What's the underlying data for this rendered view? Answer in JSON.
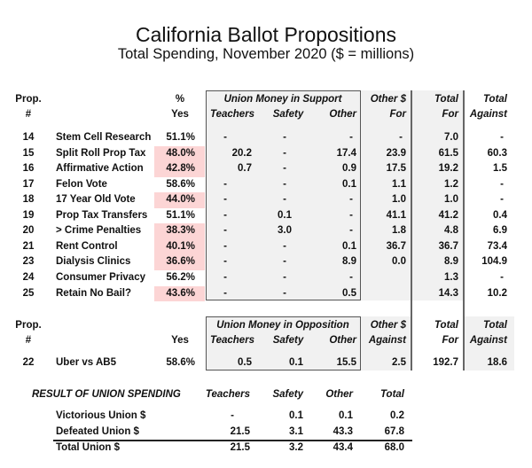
{
  "title": "California Ballot Propositions",
  "subtitle": "Total Spending, November 2020 ($ = millions)",
  "colors": {
    "failed_highlight": "#fcd5d5",
    "shaded": "#f1f1f1"
  },
  "support": {
    "headers": {
      "prop": "Prop.",
      "num": "#",
      "pct": "%",
      "yes": "Yes",
      "union_group": "Union Money in Support",
      "teachers": "Teachers",
      "safety": "Safety",
      "other": "Other",
      "other_dollar": "Other $",
      "for": "For",
      "total1": "Total",
      "total_for": "For",
      "total2": "Total",
      "total_against": "Against"
    },
    "rows": [
      {
        "prop": "14",
        "name": "Stem Cell Research",
        "yes": "51.1%",
        "failed": false,
        "teachers": "-",
        "safety": "-",
        "other": "-",
        "other_for": "-",
        "total_for": "7.0",
        "total_against": "-"
      },
      {
        "prop": "15",
        "name": "Split Roll Prop Tax",
        "yes": "48.0%",
        "failed": true,
        "teachers": "20.2",
        "safety": "-",
        "other": "17.4",
        "other_for": "23.9",
        "total_for": "61.5",
        "total_against": "60.3"
      },
      {
        "prop": "16",
        "name": "Affirmative Action",
        "yes": "42.8%",
        "failed": true,
        "teachers": "0.7",
        "safety": "-",
        "other": "0.9",
        "other_for": "17.5",
        "total_for": "19.2",
        "total_against": "1.5"
      },
      {
        "prop": "17",
        "name": "Felon Vote",
        "yes": "58.6%",
        "failed": false,
        "teachers": "-",
        "safety": "-",
        "other": "0.1",
        "other_for": "1.1",
        "total_for": "1.2",
        "total_against": "-"
      },
      {
        "prop": "18",
        "name": "17 Year Old Vote",
        "yes": "44.0%",
        "failed": true,
        "teachers": "-",
        "safety": "-",
        "other": "-",
        "other_for": "1.0",
        "total_for": "1.0",
        "total_against": "-"
      },
      {
        "prop": "19",
        "name": "Prop Tax Transfers",
        "yes": "51.1%",
        "failed": false,
        "teachers": "-",
        "safety": "0.1",
        "other": "-",
        "other_for": "41.1",
        "total_for": "41.2",
        "total_against": "0.4"
      },
      {
        "prop": "20",
        "name": "> Crime Penalties",
        "yes": "38.3%",
        "failed": true,
        "teachers": "-",
        "safety": "3.0",
        "other": "-",
        "other_for": "1.8",
        "total_for": "4.8",
        "total_against": "6.9"
      },
      {
        "prop": "21",
        "name": "Rent Control",
        "yes": "40.1%",
        "failed": true,
        "teachers": "-",
        "safety": "-",
        "other": "0.1",
        "other_for": "36.7",
        "total_for": "36.7",
        "total_against": "73.4"
      },
      {
        "prop": "23",
        "name": "Dialysis Clinics",
        "yes": "36.6%",
        "failed": true,
        "teachers": "-",
        "safety": "-",
        "other": "8.9",
        "other_for": "0.0",
        "total_for": "8.9",
        "total_against": "104.9"
      },
      {
        "prop": "24",
        "name": "Consumer Privacy",
        "yes": "56.2%",
        "failed": false,
        "teachers": "-",
        "safety": "-",
        "other": "-",
        "other_for": "",
        "total_for": "1.3",
        "total_against": "-"
      },
      {
        "prop": "25",
        "name": "Retain No Bail?",
        "yes": "43.6%",
        "failed": true,
        "teachers": "-",
        "safety": "-",
        "other": "0.5",
        "other_for": "",
        "total_for": "14.3",
        "total_against": "10.2"
      }
    ]
  },
  "opposition": {
    "headers": {
      "prop": "Prop.",
      "num": "#",
      "yes": "Yes",
      "union_group": "Union Money in Opposition",
      "teachers": "Teachers",
      "safety": "Safety",
      "other": "Other",
      "other_dollar": "Other $",
      "against": "Against",
      "total1": "Total",
      "total_for": "For",
      "total2": "Total",
      "total_against": "Against"
    },
    "rows": [
      {
        "prop": "22",
        "name": "Uber vs AB5",
        "yes": "58.6%",
        "teachers": "0.5",
        "safety": "0.1",
        "other": "15.5",
        "other_against": "2.5",
        "total_for": "192.7",
        "total_against": "18.6"
      }
    ]
  },
  "result": {
    "heading": "RESULT OF UNION SPENDING",
    "headers": {
      "teachers": "Teachers",
      "safety": "Safety",
      "other": "Other",
      "total": "Total"
    },
    "rows": [
      {
        "label": "Victorious Union $",
        "teachers": "-",
        "safety": "0.1",
        "other": "0.1",
        "total": "0.2"
      },
      {
        "label": "Defeated Union $",
        "teachers": "21.5",
        "safety": "3.1",
        "other": "43.3",
        "total": "67.8"
      },
      {
        "label": "Total Union $",
        "teachers": "21.5",
        "safety": "3.2",
        "other": "43.4",
        "total": "68.0"
      }
    ]
  }
}
